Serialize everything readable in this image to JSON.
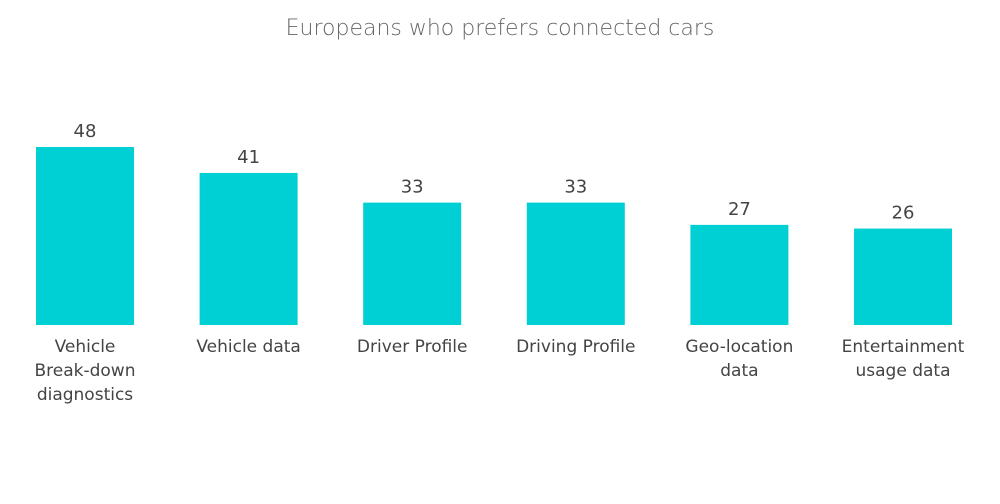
{
  "chart_data": {
    "type": "bar",
    "title": "Europeans who prefers connected cars",
    "categories": [
      [
        "Vehicle",
        "Break-down",
        "diagnostics"
      ],
      [
        "Vehicle data"
      ],
      [
        "Driver Profile"
      ],
      [
        "Driving Profile"
      ],
      [
        "Geo-location",
        "data"
      ],
      [
        "Entertainment",
        "usage data"
      ]
    ],
    "values": [
      48,
      41,
      33,
      33,
      27,
      26
    ],
    "bar_color": "#00cfd3",
    "ylim": [
      0,
      48
    ],
    "grid": false,
    "legend": "none"
  }
}
